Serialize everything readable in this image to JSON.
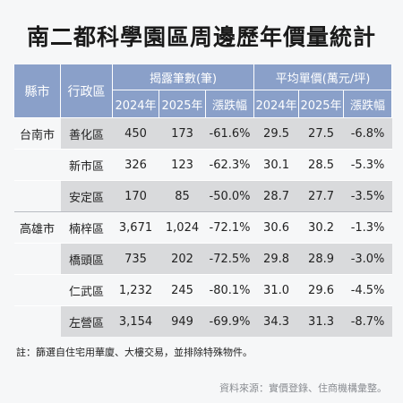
{
  "title": "南二都科學園區周邊歷年價量統計",
  "headers": {
    "city": "縣市",
    "district": "行政區",
    "volume_group": "揭露筆數(筆)",
    "price_group": "平均單價(萬元/坪)",
    "sub": [
      "2024年",
      "2025年",
      "漲跌幅",
      "2024年",
      "2025年",
      "漲跌幅"
    ]
  },
  "rows": [
    {
      "city": "台南市",
      "district": "善化區",
      "v2024": "450",
      "v2025": "173",
      "v_chg": "-61.6%",
      "p2024": "29.5",
      "p2025": "27.5",
      "p_chg": "-6.8%"
    },
    {
      "city": "",
      "district": "新市區",
      "v2024": "326",
      "v2025": "123",
      "v_chg": "-62.3%",
      "p2024": "30.1",
      "p2025": "28.5",
      "p_chg": "-5.3%"
    },
    {
      "city": "",
      "district": "安定區",
      "v2024": "170",
      "v2025": "85",
      "v_chg": "-50.0%",
      "p2024": "28.7",
      "p2025": "27.7",
      "p_chg": "-3.5%"
    },
    {
      "city": "高雄市",
      "district": "楠梓區",
      "v2024": "3,671",
      "v2025": "1,024",
      "v_chg": "-72.1%",
      "p2024": "30.6",
      "p2025": "30.2",
      "p_chg": "-1.3%"
    },
    {
      "city": "",
      "district": "橋頭區",
      "v2024": "735",
      "v2025": "202",
      "v_chg": "-72.5%",
      "p2024": "29.8",
      "p2025": "28.9",
      "p_chg": "-3.0%"
    },
    {
      "city": "",
      "district": "仁武區",
      "v2024": "1,232",
      "v2025": "245",
      "v_chg": "-80.1%",
      "p2024": "31.0",
      "p2025": "29.6",
      "p_chg": "-4.5%"
    },
    {
      "city": "",
      "district": "左營區",
      "v2024": "3,154",
      "v2025": "949",
      "v_chg": "-69.9%",
      "p2024": "34.3",
      "p2025": "31.3",
      "p_chg": "-8.7%"
    }
  ],
  "footnote": "註：篩選自住宅用華廈、大樓交易，並排除特殊物件。",
  "source": "資料來源：實價登錄、住商機構彙整。"
}
